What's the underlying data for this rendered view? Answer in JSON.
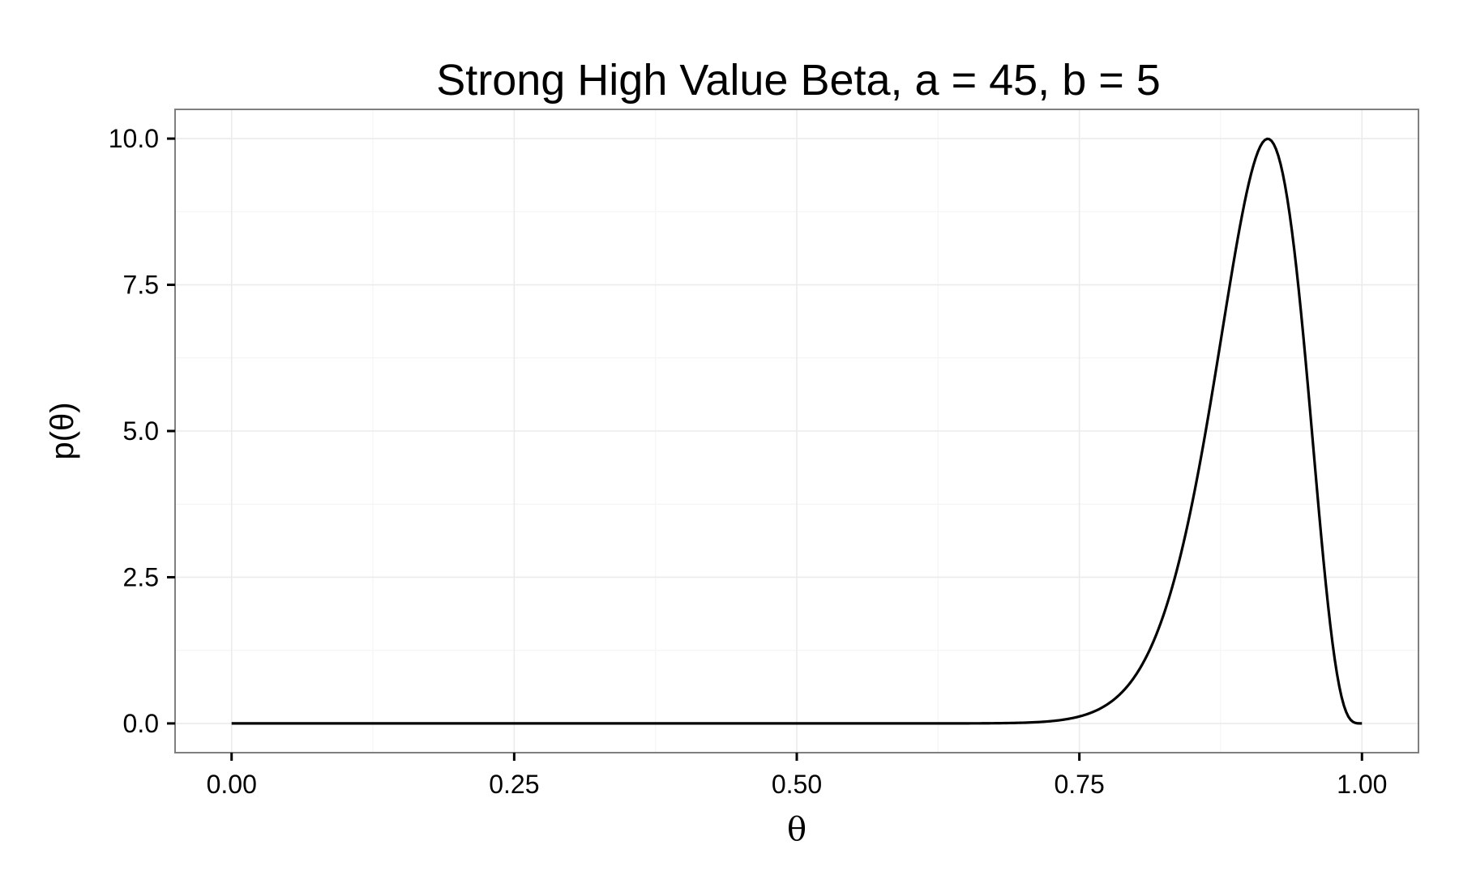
{
  "chart_data": {
    "type": "line",
    "title": "Strong High Value Beta, a = 45, b = 5",
    "xlabel": "θ",
    "ylabel": "p(θ)",
    "xlim": [
      -0.05,
      1.05
    ],
    "ylim": [
      -0.5,
      10.5
    ],
    "x_ticks": [
      0.0,
      0.25,
      0.5,
      0.75,
      1.0
    ],
    "x_tick_labels": [
      "0.00",
      "0.25",
      "0.50",
      "0.75",
      "1.00"
    ],
    "y_ticks": [
      0.0,
      2.5,
      5.0,
      7.5,
      10.0
    ],
    "y_tick_labels": [
      "0.0",
      "2.5",
      "5.0",
      "7.5",
      "10.0"
    ],
    "grid": true,
    "series": [
      {
        "distribution": "beta",
        "a": 45,
        "b": 5,
        "x": [
          0.0,
          0.6,
          0.65,
          0.7,
          0.72,
          0.74,
          0.75,
          0.76,
          0.78,
          0.8,
          0.82,
          0.84,
          0.86,
          0.87,
          0.88,
          0.89,
          0.9,
          0.91,
          0.915,
          0.92,
          0.93,
          0.94,
          0.95,
          0.96,
          0.97,
          0.98,
          0.99,
          1.0
        ],
        "y": [
          0.0,
          0.0,
          0.01,
          0.03,
          0.06,
          0.1,
          0.13,
          0.2,
          0.4,
          0.75,
          1.35,
          2.3,
          3.8,
          4.9,
          6.1,
          7.5,
          8.7,
          9.7,
          10.0,
          9.9,
          9.2,
          7.7,
          5.5,
          3.1,
          1.2,
          0.3,
          0.05,
          0.0
        ]
      }
    ]
  }
}
